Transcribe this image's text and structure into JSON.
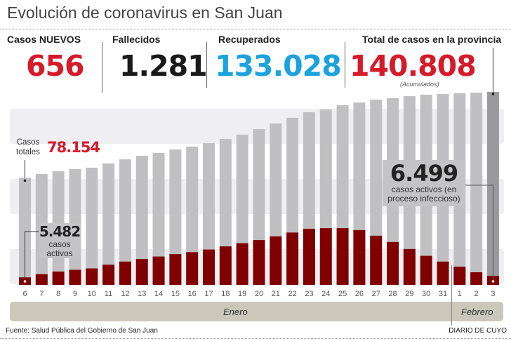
{
  "header": {
    "title": "Evolución de coronavirus en San Juan"
  },
  "kpis": [
    {
      "label": "Casos NUEVOS",
      "value": "656",
      "color": "#d71a2a"
    },
    {
      "label": "Fallecidos",
      "value": "1.281",
      "color": "#1a1a1a"
    },
    {
      "label": "Recuperados",
      "value": "133.028",
      "color": "#1aa3dd"
    },
    {
      "label": "Total de casos en la provincia",
      "value": "140.808",
      "color": "#d71a2a",
      "note": "(Acumulados)"
    }
  ],
  "annotations": {
    "first_total_label": "Casos totales",
    "first_total_value": "78.154",
    "first_active_value": "5.482",
    "first_active_label": "casos activos",
    "last_active_value": "6.499",
    "last_active_label": "casos activos (en proceso infeccioso)"
  },
  "chart_data": {
    "type": "bar",
    "title": "Evolución de coronavirus en San Juan",
    "categories": [
      "6",
      "7",
      "8",
      "9",
      "10",
      "11",
      "12",
      "13",
      "14",
      "15",
      "16",
      "17",
      "18",
      "19",
      "20",
      "21",
      "22",
      "23",
      "24",
      "25",
      "26",
      "27",
      "28",
      "29",
      "30",
      "31",
      "1",
      "2",
      "3"
    ],
    "months": [
      {
        "label": "Enero",
        "days": 26
      },
      {
        "label": "Febrero",
        "days": 3
      }
    ],
    "series": [
      {
        "name": "Casos totales",
        "color": "#c0c0c2",
        "values": [
          78154,
          80900,
          82900,
          84500,
          85500,
          88600,
          91600,
          94200,
          96300,
          98800,
          100900,
          103400,
          106500,
          109600,
          113700,
          117800,
          121900,
          126000,
          128000,
          131100,
          133100,
          135200,
          136200,
          137700,
          138800,
          139300,
          139800,
          140300,
          140808
        ]
      },
      {
        "name": "casos activos",
        "color": "#800000",
        "values": [
          5482,
          7800,
          9700,
          11000,
          12000,
          14700,
          17000,
          18900,
          20700,
          22500,
          23900,
          25800,
          28100,
          30400,
          32700,
          35400,
          38200,
          40900,
          41400,
          41400,
          40000,
          35900,
          31300,
          26200,
          21200,
          17000,
          13300,
          9200,
          6499
        ]
      }
    ],
    "highlight_color": "#9a9a9c",
    "ylim": [
      0,
      145000
    ],
    "grid": false
  },
  "footer": {
    "source": "Fuente: Salud Pública del Gobierno de San Juan",
    "brand": "DIARIO DE CUYO"
  }
}
